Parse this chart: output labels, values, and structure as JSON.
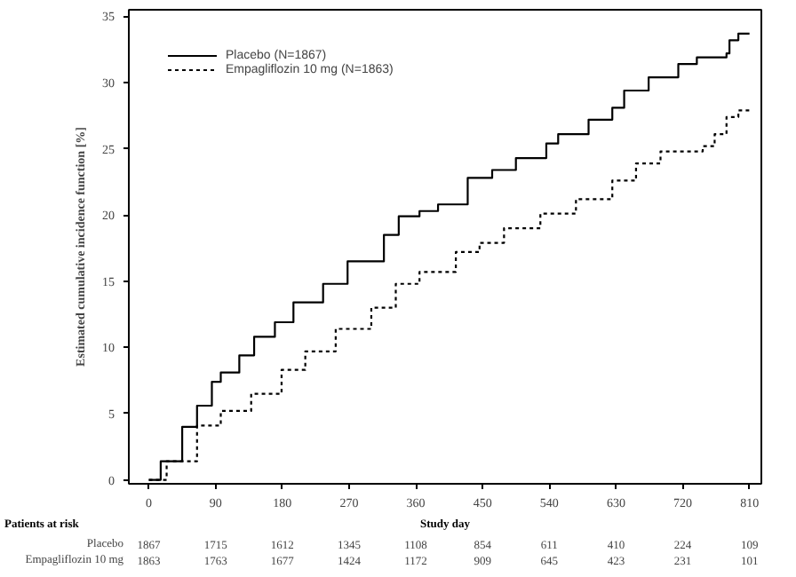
{
  "chart_data": {
    "type": "step",
    "ylabel": "Estimated cumulative incidence function [%]",
    "xlabel": "Study day",
    "xlim": [
      -27,
      826
    ],
    "ylim": [
      -0.3,
      35.5
    ],
    "xticks": [
      0,
      90,
      180,
      270,
      360,
      450,
      540,
      630,
      720,
      810
    ],
    "yticks": [
      0,
      5,
      10,
      15,
      20,
      25,
      30,
      35
    ],
    "grid": false,
    "legend": "top left",
    "series": [
      {
        "name": "Placebo (N=1867)",
        "color": "#000000",
        "line_style": "solid",
        "x": [
          0,
          16,
          45,
          65,
          85,
          97,
          122,
          142,
          170,
          195,
          235,
          268,
          317,
          337,
          365,
          390,
          430,
          463,
          495,
          536,
          552,
          593,
          625,
          641,
          674,
          714,
          739,
          779,
          783,
          795,
          810
        ],
        "values": [
          0,
          1.4,
          4.0,
          5.6,
          7.4,
          8.1,
          9.4,
          10.8,
          11.9,
          13.4,
          14.8,
          16.5,
          18.5,
          19.9,
          20.3,
          20.8,
          22.8,
          23.4,
          24.3,
          25.4,
          26.1,
          27.2,
          28.1,
          29.4,
          30.4,
          31.4,
          31.9,
          32.2,
          33.2,
          33.7,
          33.7
        ]
      },
      {
        "name": "Empagliflozin 10 mg (N=1863)",
        "color": "#000000",
        "line_style": "dashed",
        "x": [
          0,
          24,
          65,
          97,
          138,
          179,
          211,
          252,
          300,
          333,
          365,
          414,
          446,
          479,
          528,
          576,
          625,
          657,
          690,
          747,
          763,
          779,
          795,
          810
        ],
        "values": [
          0,
          1.4,
          4.1,
          5.2,
          6.5,
          8.3,
          9.7,
          11.4,
          13.0,
          14.8,
          15.7,
          17.2,
          17.9,
          19.0,
          20.1,
          21.2,
          22.6,
          23.9,
          24.8,
          25.2,
          26.1,
          27.4,
          27.9,
          28.0
        ]
      }
    ],
    "annotations": [
      "Patients at risk",
      "Placebo",
      "1867",
      "1715",
      "1612",
      "1345",
      "1108",
      "854",
      "611",
      "410",
      "224",
      "109",
      "Empagliflozin 10 mg",
      "1863",
      "1763",
      "1677",
      "1424",
      "1172",
      "909",
      "645",
      "423",
      "231",
      "101"
    ]
  }
}
